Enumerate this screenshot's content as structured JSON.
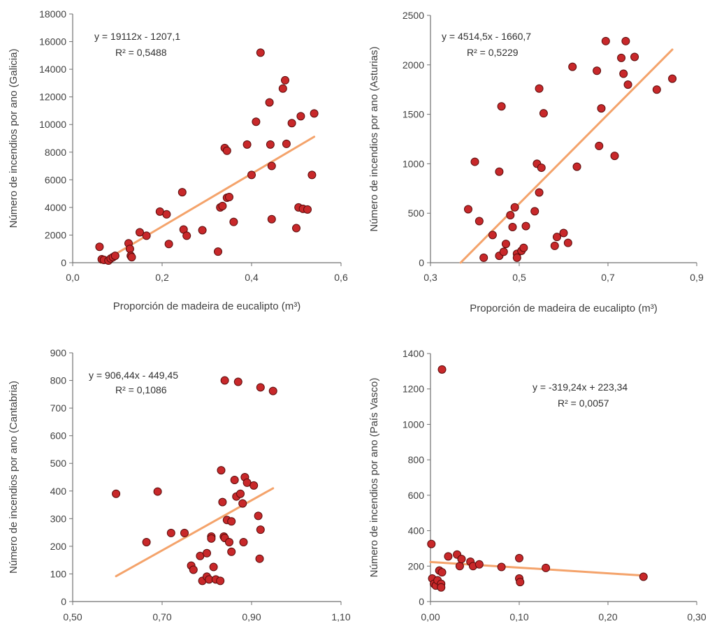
{
  "colors": {
    "point_fill": "#c8282a",
    "point_stroke": "#5a0c0c",
    "trendline": "#f4a36b",
    "axis": "#707070"
  },
  "chart_data": [
    {
      "type": "scatter",
      "ylabel": "Número de incendios por ano (Galicia)",
      "xlabel": "Proporción de madeira de eucalipto (m³)",
      "xlim": [
        0,
        0.6
      ],
      "ylim": [
        0,
        18000
      ],
      "x_ticks": [
        "0,0",
        "0,2",
        "0,4",
        "0,6"
      ],
      "y_ticks": [
        "0",
        "2000",
        "4000",
        "6000",
        "8000",
        "10000",
        "12000",
        "14000",
        "16000",
        "18000"
      ],
      "equation": "y = 19112x - 1207,1",
      "r2": "R² = 0,5488",
      "trendline": {
        "slope": 19112,
        "intercept": -1207.1,
        "x_range": [
          0.063,
          0.54
        ]
      },
      "points": [
        [
          0.06,
          1150
        ],
        [
          0.065,
          250
        ],
        [
          0.07,
          200
        ],
        [
          0.08,
          150
        ],
        [
          0.085,
          300
        ],
        [
          0.09,
          400
        ],
        [
          0.095,
          500
        ],
        [
          0.125,
          1400
        ],
        [
          0.128,
          1000
        ],
        [
          0.13,
          500
        ],
        [
          0.132,
          400
        ],
        [
          0.15,
          2200
        ],
        [
          0.165,
          1950
        ],
        [
          0.195,
          3700
        ],
        [
          0.21,
          3500
        ],
        [
          0.215,
          1350
        ],
        [
          0.245,
          5100
        ],
        [
          0.248,
          2400
        ],
        [
          0.255,
          1950
        ],
        [
          0.29,
          2350
        ],
        [
          0.325,
          800
        ],
        [
          0.33,
          4000
        ],
        [
          0.335,
          4100
        ],
        [
          0.34,
          8300
        ],
        [
          0.345,
          8100
        ],
        [
          0.345,
          4700
        ],
        [
          0.35,
          4750
        ],
        [
          0.36,
          2950
        ],
        [
          0.39,
          8550
        ],
        [
          0.4,
          6350
        ],
        [
          0.41,
          10200
        ],
        [
          0.42,
          15200
        ],
        [
          0.44,
          11600
        ],
        [
          0.442,
          8550
        ],
        [
          0.445,
          3150
        ],
        [
          0.445,
          7000
        ],
        [
          0.47,
          12600
        ],
        [
          0.475,
          13200
        ],
        [
          0.478,
          8600
        ],
        [
          0.49,
          10100
        ],
        [
          0.5,
          2500
        ],
        [
          0.505,
          4000
        ],
        [
          0.51,
          10600
        ],
        [
          0.515,
          3900
        ],
        [
          0.525,
          3850
        ],
        [
          0.535,
          6350
        ],
        [
          0.54,
          10800
        ]
      ]
    },
    {
      "type": "scatter",
      "ylabel": "Número de incendios por ano (Asturias)",
      "xlabel": "Proporción de madeira de eucalipto (m³)",
      "xlim": [
        0.3,
        0.9
      ],
      "ylim": [
        0,
        2500
      ],
      "x_ticks": [
        "0,3",
        "0,5",
        "0,7",
        "0,9"
      ],
      "y_ticks": [
        "0",
        "500",
        "1000",
        "1500",
        "2000",
        "2500"
      ],
      "equation": "y = 4514,5x - 1660,7",
      "r2": "R² = 0,5229",
      "trendline": {
        "slope": 4514.5,
        "intercept": -1660.7,
        "x_range": [
          0.368,
          0.845
        ]
      },
      "points": [
        [
          0.385,
          540
        ],
        [
          0.41,
          420
        ],
        [
          0.42,
          50
        ],
        [
          0.4,
          1020
        ],
        [
          0.44,
          280
        ],
        [
          0.455,
          70
        ],
        [
          0.455,
          920
        ],
        [
          0.46,
          1580
        ],
        [
          0.465,
          110
        ],
        [
          0.47,
          190
        ],
        [
          0.48,
          480
        ],
        [
          0.485,
          360
        ],
        [
          0.49,
          560
        ],
        [
          0.495,
          90
        ],
        [
          0.495,
          50
        ],
        [
          0.505,
          120
        ],
        [
          0.51,
          150
        ],
        [
          0.515,
          370
        ],
        [
          0.535,
          520
        ],
        [
          0.54,
          1000
        ],
        [
          0.545,
          710
        ],
        [
          0.545,
          1760
        ],
        [
          0.55,
          960
        ],
        [
          0.555,
          1510
        ],
        [
          0.58,
          170
        ],
        [
          0.585,
          260
        ],
        [
          0.6,
          300
        ],
        [
          0.61,
          200
        ],
        [
          0.62,
          1980
        ],
        [
          0.63,
          970
        ],
        [
          0.675,
          1940
        ],
        [
          0.68,
          1180
        ],
        [
          0.685,
          1560
        ],
        [
          0.695,
          2240
        ],
        [
          0.715,
          1080
        ],
        [
          0.73,
          2070
        ],
        [
          0.735,
          1910
        ],
        [
          0.74,
          2240
        ],
        [
          0.745,
          1800
        ],
        [
          0.76,
          2080
        ],
        [
          0.81,
          1750
        ],
        [
          0.845,
          1860
        ]
      ]
    },
    {
      "type": "scatter",
      "ylabel": "Número de incendios por ano (Cantabria)",
      "xlabel": "",
      "xlim": [
        0.5,
        1.1
      ],
      "ylim": [
        0,
        900
      ],
      "x_ticks": [
        "0,50",
        "0,70",
        "0,90",
        "1,10"
      ],
      "y_ticks": [
        "0",
        "100",
        "200",
        "300",
        "400",
        "500",
        "600",
        "700",
        "800",
        "900"
      ],
      "equation": "y = 906,44x - 449,45",
      "r2": "R² = 0,1086",
      "trendline": {
        "slope": 906.44,
        "intercept": -449.45,
        "x_range": [
          0.597,
          0.948
        ]
      },
      "points": [
        [
          0.597,
          390
        ],
        [
          0.665,
          215
        ],
        [
          0.69,
          398
        ],
        [
          0.72,
          248
        ],
        [
          0.75,
          248
        ],
        [
          0.765,
          130
        ],
        [
          0.77,
          115
        ],
        [
          0.785,
          165
        ],
        [
          0.79,
          75
        ],
        [
          0.8,
          175
        ],
        [
          0.8,
          90
        ],
        [
          0.805,
          80
        ],
        [
          0.81,
          235
        ],
        [
          0.81,
          228
        ],
        [
          0.815,
          125
        ],
        [
          0.82,
          80
        ],
        [
          0.83,
          75
        ],
        [
          0.832,
          475
        ],
        [
          0.835,
          360
        ],
        [
          0.838,
          235
        ],
        [
          0.84,
          230
        ],
        [
          0.84,
          800
        ],
        [
          0.845,
          295
        ],
        [
          0.85,
          215
        ],
        [
          0.855,
          180
        ],
        [
          0.855,
          290
        ],
        [
          0.862,
          440
        ],
        [
          0.866,
          380
        ],
        [
          0.87,
          795
        ],
        [
          0.875,
          390
        ],
        [
          0.88,
          355
        ],
        [
          0.882,
          215
        ],
        [
          0.885,
          450
        ],
        [
          0.89,
          430
        ],
        [
          0.905,
          420
        ],
        [
          0.915,
          310
        ],
        [
          0.918,
          155
        ],
        [
          0.92,
          260
        ],
        [
          0.92,
          775
        ],
        [
          0.948,
          762
        ]
      ]
    },
    {
      "type": "scatter",
      "ylabel": "Número de incendios por ano (País Vasco)",
      "xlabel": "",
      "xlim": [
        0,
        0.3
      ],
      "ylim": [
        0,
        1400
      ],
      "x_ticks": [
        "0,00",
        "0,10",
        "0,20",
        "0,30"
      ],
      "y_ticks": [
        "0",
        "200",
        "400",
        "600",
        "800",
        "1000",
        "1200",
        "1400"
      ],
      "equation": "y = -319,24x + 223,34",
      "r2": "R² = 0,0057",
      "trendline": {
        "slope": -319.24,
        "intercept": 223.34,
        "x_range": [
          0.0,
          0.24
        ]
      },
      "points": [
        [
          0.001,
          325
        ],
        [
          0.002,
          130
        ],
        [
          0.004,
          100
        ],
        [
          0.006,
          90
        ],
        [
          0.008,
          120
        ],
        [
          0.01,
          175
        ],
        [
          0.012,
          100
        ],
        [
          0.012,
          80
        ],
        [
          0.013,
          165
        ],
        [
          0.013,
          1310
        ],
        [
          0.02,
          255
        ],
        [
          0.03,
          265
        ],
        [
          0.033,
          200
        ],
        [
          0.035,
          240
        ],
        [
          0.045,
          225
        ],
        [
          0.048,
          200
        ],
        [
          0.055,
          210
        ],
        [
          0.08,
          195
        ],
        [
          0.1,
          245
        ],
        [
          0.1,
          130
        ],
        [
          0.101,
          110
        ],
        [
          0.13,
          190
        ],
        [
          0.24,
          140
        ]
      ]
    }
  ]
}
